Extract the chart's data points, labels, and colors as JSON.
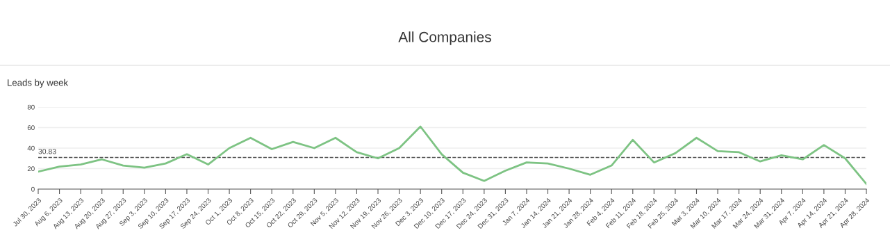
{
  "chart_data": {
    "type": "line",
    "title": "All Companies",
    "subtitle": "Leads by week",
    "categories": [
      "Jul 30, 2023",
      "Aug 6, 2023",
      "Aug 13, 2023",
      "Aug 20, 2023",
      "Aug 27, 2023",
      "Sep 3, 2023",
      "Sep 10, 2023",
      "Sep 17, 2023",
      "Sep 24, 2023",
      "Oct 1, 2023",
      "Oct 8, 2023",
      "Oct 15, 2023",
      "Oct 22, 2023",
      "Oct 29, 2023",
      "Nov 5, 2023",
      "Nov 12, 2023",
      "Nov 19, 2023",
      "Nov 26, 2023",
      "Dec 3, 2023",
      "Dec 10, 2023",
      "Dec 17, 2023",
      "Dec 24, 2023",
      "Dec 31, 2023",
      "Jan 7, 2024",
      "Jan 14, 2024",
      "Jan 21, 2024",
      "Jan 28, 2024",
      "Feb 4, 2024",
      "Feb 11, 2024",
      "Feb 18, 2024",
      "Feb 25, 2024",
      "Mar 3, 2024",
      "Mar 10, 2024",
      "Mar 17, 2024",
      "Mar 24, 2024",
      "Mar 31, 2024",
      "Apr 7, 2024",
      "Apr 14, 2024",
      "Apr 21, 2024",
      "Apr 28, 2024"
    ],
    "series": [
      {
        "color": "#7dc383",
        "values": [
          17,
          22,
          24,
          29,
          23,
          21,
          25,
          34,
          24,
          40,
          50,
          39,
          46,
          40,
          50,
          36,
          30,
          40,
          61,
          34,
          16,
          8,
          18,
          26,
          25,
          20,
          14,
          23,
          48,
          26,
          35,
          50,
          37,
          36,
          27,
          33,
          29,
          43,
          30,
          5
        ]
      }
    ],
    "ylim": [
      0,
      80
    ],
    "yticks": [
      0,
      20,
      40,
      60,
      80
    ],
    "grid": "y",
    "legend": false,
    "marker": "none",
    "line_style": "solid",
    "ref_lines": [
      {
        "axis": "y",
        "value": 30.83,
        "label": "30.83",
        "color": "#555555",
        "line_style": "dashed"
      }
    ]
  }
}
